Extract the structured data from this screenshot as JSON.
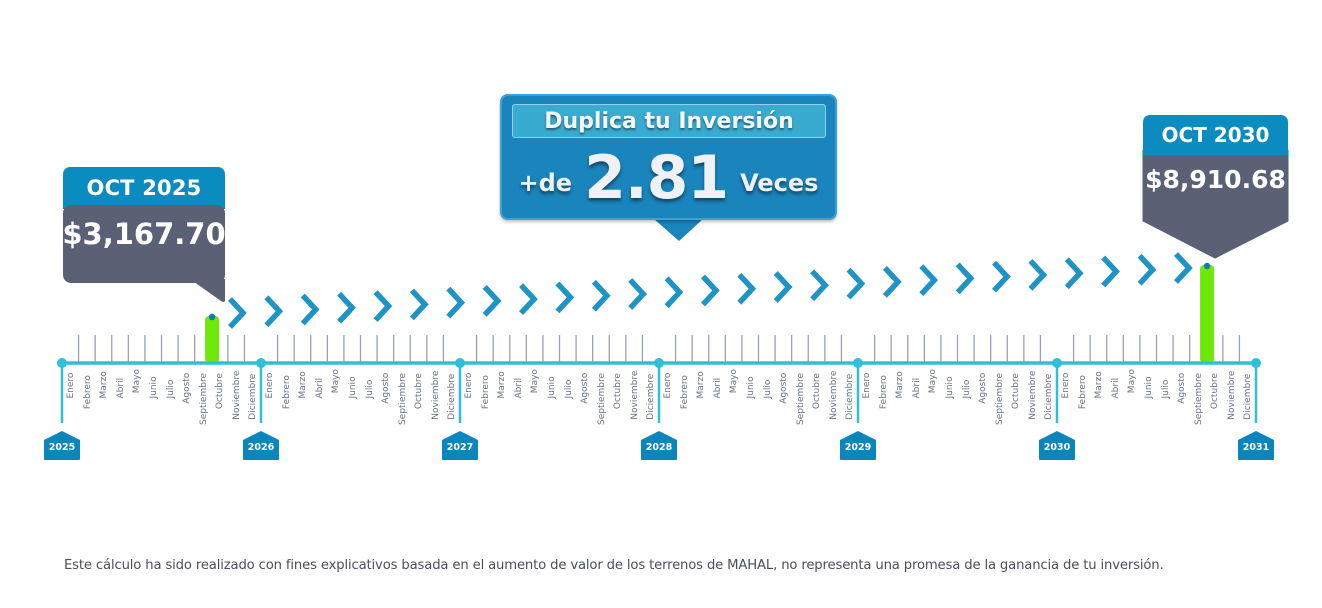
{
  "chart_data": {
    "type": "timeline",
    "title": "Duplica tu Inversión",
    "subtitle": "+de 2.81 Veces",
    "multiplier": "2.81",
    "start_point": {
      "label": "OCT 2025",
      "value": 3167.7,
      "display": "$3,167.70",
      "year": 2025,
      "month": "Octubre"
    },
    "end_point": {
      "label": "OCT 2030",
      "value": 8910.68,
      "display": "$8,910.68",
      "year": 2030,
      "month": "Octubre"
    },
    "years": [
      "2025",
      "2026",
      "2027",
      "2028",
      "2029",
      "2030",
      "2031"
    ],
    "months": [
      "Enero",
      "Febrero",
      "Marzo",
      "Abril",
      "Mayo",
      "Junio",
      "Julio",
      "Agosto",
      "Septiembre",
      "Octubre",
      "Noviembre",
      "Diciembre"
    ],
    "chevron_count": 27,
    "note": "Este cálculo ha sido realizado con fines explicativos basada en el aumento de valor de los terrenos de MAHAL, no representa una promesa de la ganancia de tu inversión."
  },
  "hero": {
    "title": "Duplica tu Inversión",
    "prefix": "+de",
    "multiplier": "2.81",
    "suffix": "Veces"
  },
  "callouts": {
    "start": {
      "date": "OCT 2025",
      "amount": "$3,167.70"
    },
    "end": {
      "date": "OCT 2030",
      "amount": "$8,910.68"
    }
  },
  "timeline": {
    "years": [
      "2025",
      "2026",
      "2027",
      "2028",
      "2029",
      "2030",
      "2031"
    ],
    "months": [
      "Enero",
      "Febrero",
      "Marzo",
      "Abril",
      "Mayo",
      "Junio",
      "Julio",
      "Agosto",
      "Septiembre",
      "Octubre",
      "Noviembre",
      "Diciembre"
    ]
  },
  "colors": {
    "axis": "#2fbfd6",
    "tick": "#9aa1b5",
    "highlight_bar": "#6ee80a",
    "marker_dot": "#1576b8",
    "chevron": "#1e93c6",
    "year_tag": "#0b86bd",
    "callout_header": "#0a8cc0",
    "callout_body": "#5b6175"
  },
  "disclaimer": "Este cálculo ha sido realizado con fines explicativos basada en el aumento de valor de los terrenos de MAHAL, no representa una promesa de la ganancia de tu inversión."
}
